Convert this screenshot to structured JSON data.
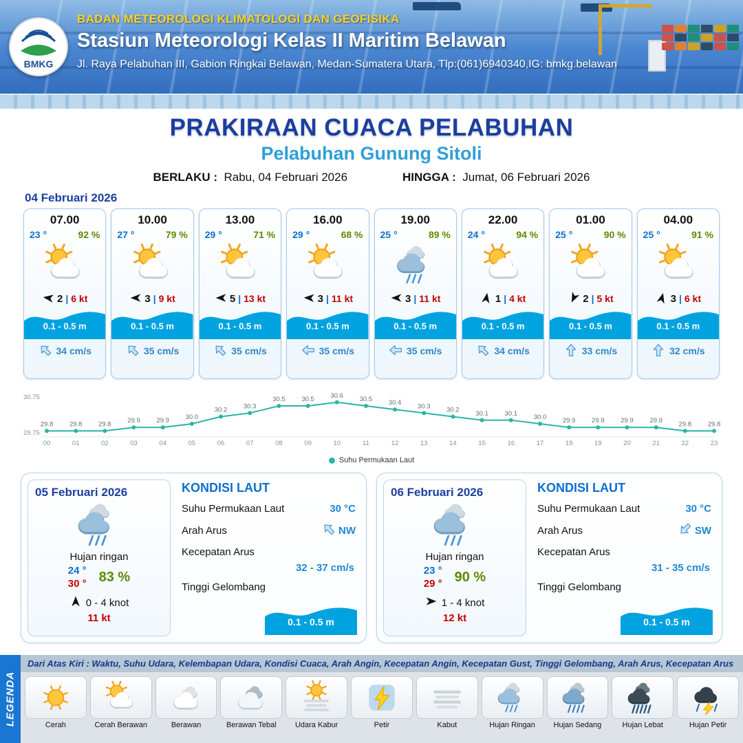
{
  "header": {
    "logo_text": "BMKG",
    "agency": "BADAN METEOROLOGI KLIMATOLOGI DAN GEOFISIKA",
    "station": "Stasiun Meteorologi Kelas II Maritim Belawan",
    "address": "Jl. Raya Pelabuhan III, Gabion Ringkai Belawan, Medan-Sumatera Utara, Tlp:(061)6940340,IG: bmkg.belawan"
  },
  "title": {
    "main": "PRAKIRAAN CUACA PELABUHAN",
    "port": "Pelabuhan Gunung Sitoli",
    "berlaku_label": "BERLAKU :",
    "berlaku_value": "Rabu, 04 Februari 2026",
    "hingga_label": "HINGGA :",
    "hingga_value": "Jumat, 06 Februari 2026"
  },
  "colors": {
    "header_blue": "#2b66b8",
    "accent_yellow": "#ffd21f",
    "title_navy": "#1c3e9e",
    "port_blue": "#2f9fd8",
    "temp_blue": "#0c6fd0",
    "humidity_green": "#5d8a00",
    "gust_red": "#c40000",
    "wave_blue": "#00a3e0",
    "chart_teal": "#2ab5a5",
    "legenda_blue": "#1976d2"
  },
  "day1": {
    "date": "04 Februari 2026",
    "cards": [
      {
        "time": "07.00",
        "temp": "23 °",
        "rh": "92 %",
        "icon": "cerah-berawan",
        "wind_deg": 188,
        "wind": "2",
        "gust": "6 kt",
        "wave": "0.1 - 0.5 m",
        "cur_deg": -135,
        "current": "34 cm/s"
      },
      {
        "time": "10.00",
        "temp": "27 °",
        "rh": "79 %",
        "icon": "cerah-berawan",
        "wind_deg": 180,
        "wind": "3",
        "gust": "9 kt",
        "wave": "0.1 - 0.5 m",
        "cur_deg": -135,
        "current": "35 cm/s"
      },
      {
        "time": "13.00",
        "temp": "29 °",
        "rh": "71 %",
        "icon": "cerah-berawan",
        "wind_deg": 180,
        "wind": "5",
        "gust": "13 kt",
        "wave": "0.1 - 0.5 m",
        "cur_deg": -135,
        "current": "35 cm/s"
      },
      {
        "time": "16.00",
        "temp": "29 °",
        "rh": "68 %",
        "icon": "cerah-berawan",
        "wind_deg": 183,
        "wind": "3",
        "gust": "11 kt",
        "wave": "0.1 - 0.5 m",
        "cur_deg": 180,
        "current": "35 cm/s"
      },
      {
        "time": "19.00",
        "temp": "25 °",
        "rh": "89 %",
        "icon": "hujan-ringan",
        "wind_deg": 180,
        "wind": "3",
        "gust": "11 kt",
        "wave": "0.1 - 0.5 m",
        "cur_deg": 180,
        "current": "35 cm/s"
      },
      {
        "time": "22.00",
        "temp": "24 °",
        "rh": "94 %",
        "icon": "cerah-berawan",
        "wind_deg": -80,
        "wind": "1",
        "gust": "4 kt",
        "wave": "0.1 - 0.5 m",
        "cur_deg": -135,
        "current": "34 cm/s"
      },
      {
        "time": "01.00",
        "temp": "25 °",
        "rh": "90 %",
        "icon": "cerah-berawan",
        "wind_deg": 115,
        "wind": "2",
        "gust": "5 kt",
        "wave": "0.1 - 0.5 m",
        "cur_deg": -90,
        "current": "33 cm/s"
      },
      {
        "time": "04.00",
        "temp": "25 °",
        "rh": "91 %",
        "icon": "cerah-berawan",
        "wind_deg": -75,
        "wind": "3",
        "gust": "6 kt",
        "wave": "0.1 - 0.5 m",
        "cur_deg": -90,
        "current": "32 cm/s"
      }
    ]
  },
  "chart_data": {
    "type": "line",
    "legend": "Suhu Permukaan Laut",
    "x": [
      "00",
      "01",
      "02",
      "03",
      "04",
      "05",
      "06",
      "07",
      "08",
      "09",
      "10",
      "11",
      "12",
      "13",
      "14",
      "15",
      "16",
      "17",
      "18",
      "19",
      "20",
      "21",
      "22",
      "23"
    ],
    "values": [
      29.8,
      29.8,
      29.8,
      29.9,
      29.9,
      30.0,
      30.2,
      30.3,
      30.5,
      30.5,
      30.6,
      30.5,
      30.4,
      30.3,
      30.2,
      30.1,
      30.1,
      30.0,
      29.9,
      29.9,
      29.9,
      29.9,
      29.8,
      29.8
    ],
    "ylim": [
      29.75,
      30.75
    ],
    "yticks": [
      "30.75",
      "29.75"
    ],
    "line_color": "#2ab5a5",
    "xlabel": "",
    "ylabel": ""
  },
  "day2": {
    "date": "05 Februari 2026",
    "icon": "hujan-ringan",
    "condition": "Hujan ringan",
    "temp_min": "24 °",
    "temp_max": "30 °",
    "rh": "83 %",
    "wind_deg": -90,
    "wind_range": "0 - 4 knot",
    "gust": "11 kt",
    "sea": {
      "title": "KONDISI LAUT",
      "sst_label": "Suhu Permukaan Laut",
      "sst_value": "30 °C",
      "dir_label": "Arah Arus",
      "dir_value": "NW",
      "dir_deg": -135,
      "speed_label": "Kecepatan Arus",
      "speed_value": "32 - 37 cm/s",
      "wave_label": "Tinggi Gelombang",
      "wave_value": "0.1 - 0.5 m"
    }
  },
  "day3": {
    "date": "06 Februari 2026",
    "icon": "hujan-ringan",
    "condition": "Hujan ringan",
    "temp_min": "23 °",
    "temp_max": "29 °",
    "rh": "90 %",
    "wind_deg": 0,
    "wind_range": "1 - 4 knot",
    "gust": "12 kt",
    "sea": {
      "title": "KONDISI LAUT",
      "sst_label": "Suhu Permukaan Laut",
      "sst_value": "30 °C",
      "dir_label": "Arah Arus",
      "dir_value": "SW",
      "dir_deg": 135,
      "speed_label": "Kecepatan Arus",
      "speed_value": "31  - 35 cm/s",
      "wave_label": "Tinggi Gelombang",
      "wave_value": "0.1 - 0.5 m"
    }
  },
  "legend": {
    "title": "LEGENDA",
    "note": "Dari Atas Kiri : Waktu, Suhu Udara, Kelembapan Udara, Kondisi Cuaca, Arah Angin, Kecepatan Angin, Kecepatan Gust, Tinggi Gelombang, Arah Arus, Kecepatan Arus",
    "items": [
      {
        "label": "Cerah",
        "icon": "cerah"
      },
      {
        "label": "Cerah Berawan",
        "icon": "cerah-berawan"
      },
      {
        "label": "Berawan",
        "icon": "berawan"
      },
      {
        "label": "Berawan Tebal",
        "icon": "berawan-tebal"
      },
      {
        "label": "Udara Kabur",
        "icon": "udara-kabur"
      },
      {
        "label": "Petir",
        "icon": "petir"
      },
      {
        "label": "Kabut",
        "icon": "kabut"
      },
      {
        "label": "Hujan Ringan",
        "icon": "hujan-ringan"
      },
      {
        "label": "Hujan Sedang",
        "icon": "hujan-sedang"
      },
      {
        "label": "Hujan Lebat",
        "icon": "hujan-lebat"
      },
      {
        "label": "Hujan Petir",
        "icon": "hujan-petir"
      }
    ]
  }
}
